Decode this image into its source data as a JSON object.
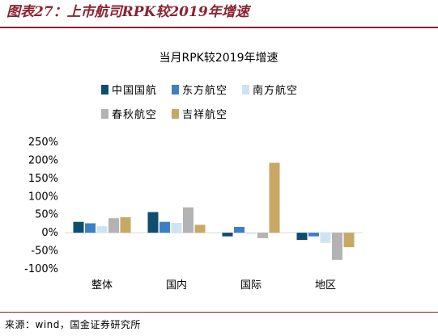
{
  "figure": {
    "title": "图表27：上市航司RPK较2019年增速",
    "source": "来源：wind，国金证券研究所"
  },
  "chart_data": {
    "type": "bar",
    "title": "当月RPK较2019年增速",
    "categories": [
      "整体",
      "国内",
      "国际",
      "地区"
    ],
    "series": [
      {
        "name": "中国国航",
        "color": "#0d4e6e",
        "values": [
          30,
          57,
          -10,
          -20
        ]
      },
      {
        "name": "东方航空",
        "color": "#3d7fc4",
        "values": [
          26,
          30,
          16,
          -10
        ]
      },
      {
        "name": "南方航空",
        "color": "#cfe4f3",
        "values": [
          18,
          27,
          -3,
          -28
        ]
      },
      {
        "name": "春秋航空",
        "color": "#b3b3b3",
        "values": [
          40,
          70,
          -15,
          -75
        ]
      },
      {
        "name": "吉祥航空",
        "color": "#c9a865",
        "values": [
          43,
          22,
          193,
          -40
        ]
      }
    ],
    "ylim": [
      -100,
      250
    ],
    "yticks": [
      -100,
      -50,
      0,
      50,
      100,
      150,
      200,
      250
    ],
    "ytick_labels": [
      "-100%",
      "-50%",
      "0%",
      "50%",
      "100%",
      "150%",
      "200%",
      "250%"
    ],
    "grid": false,
    "legend_position": "top"
  }
}
